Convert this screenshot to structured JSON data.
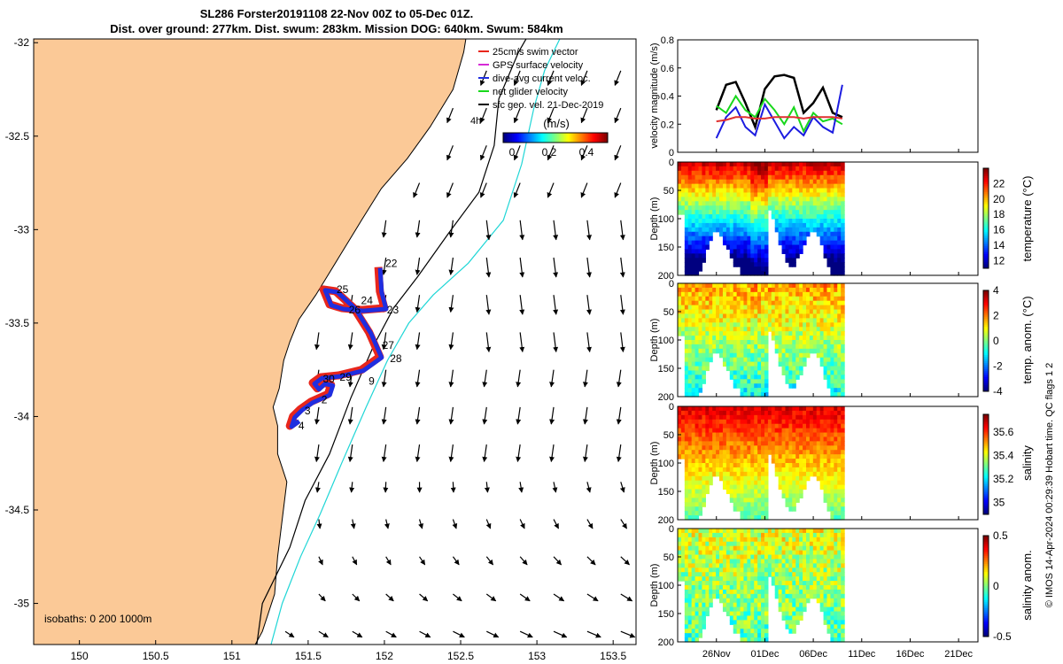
{
  "title_line1": "SL286 Forster20191108 22-Nov 00Z to 05-Dec 01Z.",
  "title_line2": "Dist. over ground: 277km. Dist. swum: 283km. Mission DOG: 640km. Swum: 584km",
  "credit": "© IMOS 14-Apr-2024 00:29:39 Hobart time. QC flags 1  2",
  "colors": {
    "land": "#fbc997",
    "track_red": "#e8261c",
    "track_blue": "#1f2ee0",
    "isobath_200": "#000000",
    "isobath_1000": "#1fd6d6",
    "velocity_black": "#000000",
    "velocity_green": "#18d81c",
    "velocity_blue": "#1c1ce0",
    "velocity_red": "#e03030"
  },
  "map": {
    "x_ticks": [
      "150",
      "150.5",
      "151",
      "151.5",
      "152",
      "152.5",
      "153",
      "153.5"
    ],
    "y_ticks": [
      "-32",
      "-32.5",
      "-33",
      "-33.5",
      "-34",
      "-34.5",
      "-35"
    ],
    "xlim": [
      149.7,
      153.65
    ],
    "ylim": [
      -35.22,
      -31.98
    ],
    "legend": [
      {
        "label": "25cm/s swim vector",
        "color": "#e8261c"
      },
      {
        "label": "GPS surface velocity",
        "color": "#d62bd6"
      },
      {
        "label": "dive-avg current veloc.",
        "color": "#1f2ee0"
      },
      {
        "label": "net glider velocity",
        "color": "#18d81c"
      },
      {
        "label": "sfc geo. vel. 21-Dec-2019",
        "color": "#000000"
      }
    ],
    "legend_extra": "4h",
    "colorbar_title": "(m/s)",
    "colorbar_ticks": [
      "0",
      "0.2",
      "0.4"
    ],
    "isobaths_label": "isobaths: 0   200  1000m",
    "day_labels": [
      {
        "label": "22",
        "lon": 151.96,
        "lat": -33.18
      },
      {
        "label": "25",
        "lon": 151.64,
        "lat": -33.32
      },
      {
        "label": "24",
        "lon": 151.8,
        "lat": -33.38
      },
      {
        "label": "26",
        "lon": 151.72,
        "lat": -33.43
      },
      {
        "label": "23",
        "lon": 151.97,
        "lat": -33.43
      },
      {
        "label": "27",
        "lon": 151.94,
        "lat": -33.62
      },
      {
        "label": "28",
        "lon": 151.99,
        "lat": -33.69
      },
      {
        "label": "30",
        "lon": 151.55,
        "lat": -33.8
      },
      {
        "label": "29",
        "lon": 151.66,
        "lat": -33.79
      },
      {
        "label": "9",
        "lon": 151.85,
        "lat": -33.81
      },
      {
        "label": "2",
        "lon": 151.54,
        "lat": -33.91
      },
      {
        "label": "3",
        "lon": 151.43,
        "lat": -33.97
      },
      {
        "label": "4",
        "lon": 151.39,
        "lat": -34.05
      }
    ]
  },
  "chart_data": [
    {
      "type": "line",
      "ylabel": "velocity magnitude (m/s)",
      "ylim": [
        0,
        0.8
      ],
      "y_ticks": [
        "0",
        "0.2",
        "0.4",
        "0.6",
        "0.8"
      ],
      "x_dates": [
        "22-Nov",
        "23-Nov",
        "24-Nov",
        "25-Nov",
        "26-Nov",
        "27-Nov",
        "28-Nov",
        "29-Nov",
        "30-Nov",
        "01-Dec",
        "02-Dec",
        "03-Dec",
        "04-Dec",
        "05-Dec"
      ],
      "series": [
        {
          "color": "#000000",
          "values": [
            0.3,
            0.48,
            0.5,
            0.35,
            0.18,
            0.45,
            0.54,
            0.55,
            0.53,
            0.28,
            0.35,
            0.46,
            0.28,
            0.25
          ]
        },
        {
          "color": "#18d81c",
          "values": [
            0.33,
            0.28,
            0.4,
            0.3,
            0.25,
            0.38,
            0.3,
            0.2,
            0.32,
            0.15,
            0.28,
            0.22,
            0.24,
            0.2
          ]
        },
        {
          "color": "#1c1ce0",
          "values": [
            0.1,
            0.25,
            0.32,
            0.18,
            0.12,
            0.34,
            0.22,
            0.1,
            0.18,
            0.12,
            0.25,
            0.18,
            0.14,
            0.48
          ]
        },
        {
          "color": "#e03030",
          "values": [
            0.22,
            0.23,
            0.25,
            0.25,
            0.24,
            0.24,
            0.25,
            0.25,
            0.25,
            0.24,
            0.25,
            0.25,
            0.25,
            0.24
          ]
        }
      ]
    },
    {
      "type": "heatmap",
      "ylabel": "Depth (m)",
      "variable": "temperature (°C)",
      "y_ticks": [
        "0",
        "50",
        "100",
        "150",
        "200"
      ],
      "colorbar_ticks": [
        "12",
        "14",
        "16",
        "18",
        "20",
        "22"
      ],
      "clim": [
        11,
        24
      ]
    },
    {
      "type": "heatmap",
      "ylabel": "Depth (m)",
      "variable": "temp. anom. (°C)",
      "y_ticks": [
        "0",
        "50",
        "100",
        "150",
        "200"
      ],
      "colorbar_ticks": [
        "4",
        "2",
        "0",
        "-2",
        "-4"
      ],
      "clim": [
        -4,
        4
      ]
    },
    {
      "type": "heatmap",
      "ylabel": "Depth (m)",
      "variable": "salinity",
      "y_ticks": [
        "0",
        "50",
        "100",
        "150",
        "200"
      ],
      "colorbar_ticks": [
        "35.6",
        "35.4",
        "35.2",
        "35"
      ],
      "clim": [
        34.9,
        35.75
      ]
    },
    {
      "type": "heatmap",
      "ylabel": "Depth (m)",
      "variable": "salinity anom.",
      "y_ticks": [
        "0",
        "50",
        "100",
        "150",
        "200"
      ],
      "colorbar_ticks": [
        "0.5",
        "0",
        "-0.5"
      ],
      "clim": [
        -0.5,
        0.5
      ]
    }
  ],
  "time_axis": {
    "ticks": [
      "26Nov",
      "01Dec",
      "06Dec",
      "11Dec",
      "16Dec",
      "21Dec"
    ],
    "xlim_days": [
      -4,
      27
    ]
  }
}
